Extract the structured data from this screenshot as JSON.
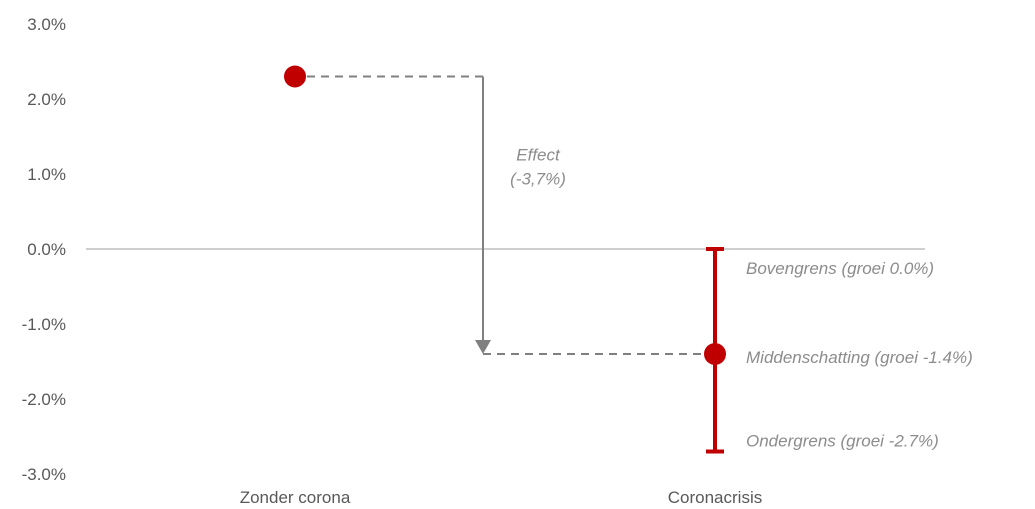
{
  "chart_data": {
    "type": "scatter",
    "categories": [
      "Zonder corona",
      "Coronacrisis"
    ],
    "y_ticks": [
      "3.0%",
      "2.0%",
      "1.0%",
      "0.0%",
      "-1.0%",
      "-2.0%",
      "-3.0%"
    ],
    "ylim": [
      -3.0,
      3.0
    ],
    "points": [
      {
        "category": "Zonder corona",
        "value": 2.3
      },
      {
        "category": "Coronacrisis",
        "value": -1.4
      }
    ],
    "error_range": {
      "category": "Coronacrisis",
      "low": -2.7,
      "high": 0.0
    },
    "annotations": {
      "effect_line1": "Effect",
      "effect_line2": "(-3,7%)",
      "upper": "Bovengrens (groei 0.0%)",
      "mid": "Middenschatting (groei -1.4%)",
      "lower": "Ondergrens (groei -2.7%)"
    },
    "colors": {
      "point": "#c00000",
      "arrow": "#808080",
      "zero_line": "#bfbfbf"
    }
  }
}
